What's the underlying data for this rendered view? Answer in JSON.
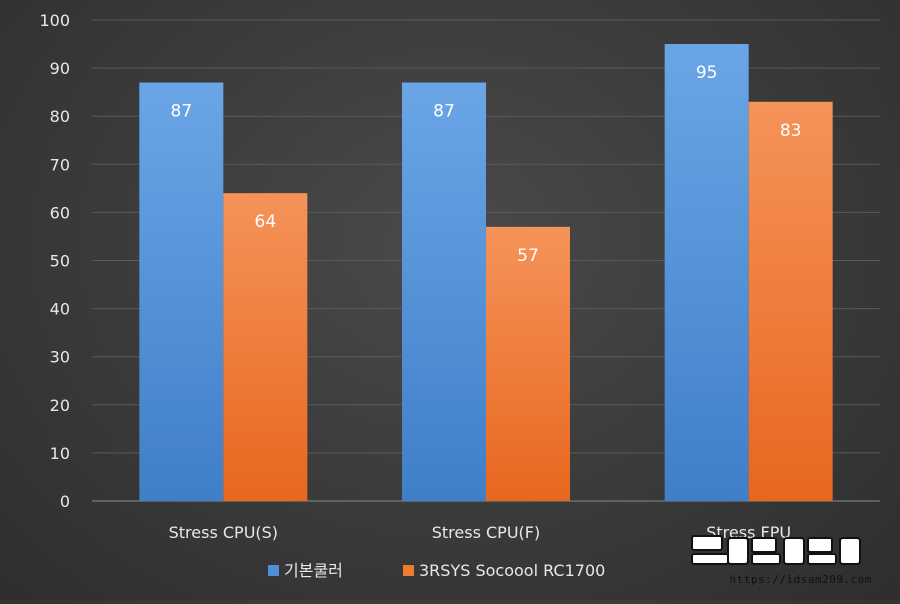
{
  "chart_data": {
    "type": "bar",
    "categories": [
      "Stress CPU(S)",
      "Stress CPU(F)",
      "Stress FPU"
    ],
    "series": [
      {
        "name": "기본쿨러",
        "values": [
          87,
          87,
          95
        ],
        "color": "#4e8fd6"
      },
      {
        "name": "3RSYS Socoool RC1700",
        "values": [
          64,
          57,
          83
        ],
        "color": "#f07a30"
      }
    ],
    "ylim": [
      0,
      100
    ],
    "yticks": [
      0,
      10,
      20,
      30,
      40,
      50,
      60,
      70,
      80,
      90,
      100
    ],
    "grid": true,
    "legend": "bottom"
  },
  "watermark": {
    "text": "https://idsam209.com"
  }
}
